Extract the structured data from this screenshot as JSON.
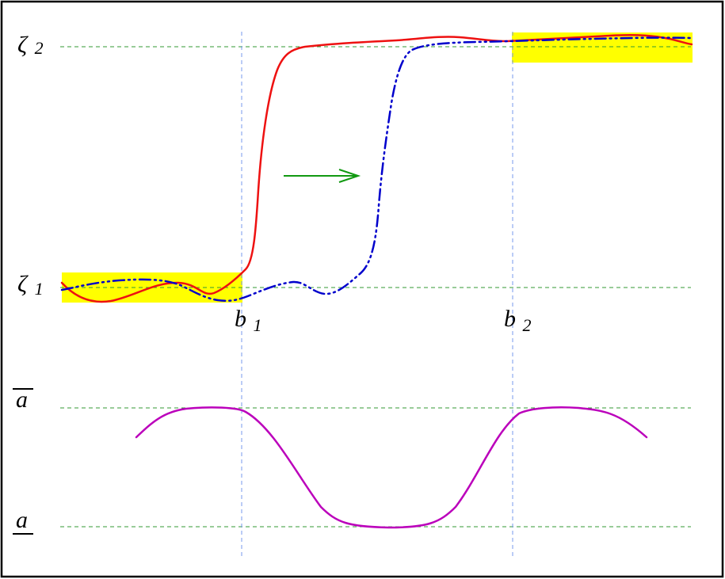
{
  "labels": {
    "zeta2": {
      "main": "ζ",
      "sub": "2"
    },
    "zeta1": {
      "main": "ζ",
      "sub": "1"
    },
    "b1": {
      "main": "b",
      "sub": "1"
    },
    "b2": {
      "main": "b",
      "sub": "2"
    },
    "a_upper": "a",
    "a_lower": "a"
  },
  "colors": {
    "frame": "#000000",
    "highlight": "#ffff00",
    "horizontal_reference": "#339933",
    "vertical_reference": "#7799ee",
    "solid_curve": "#ee1111",
    "dash_dot_curve": "#0000cc",
    "arrow": "#119911",
    "lower_curve": "#bb00bb"
  }
}
